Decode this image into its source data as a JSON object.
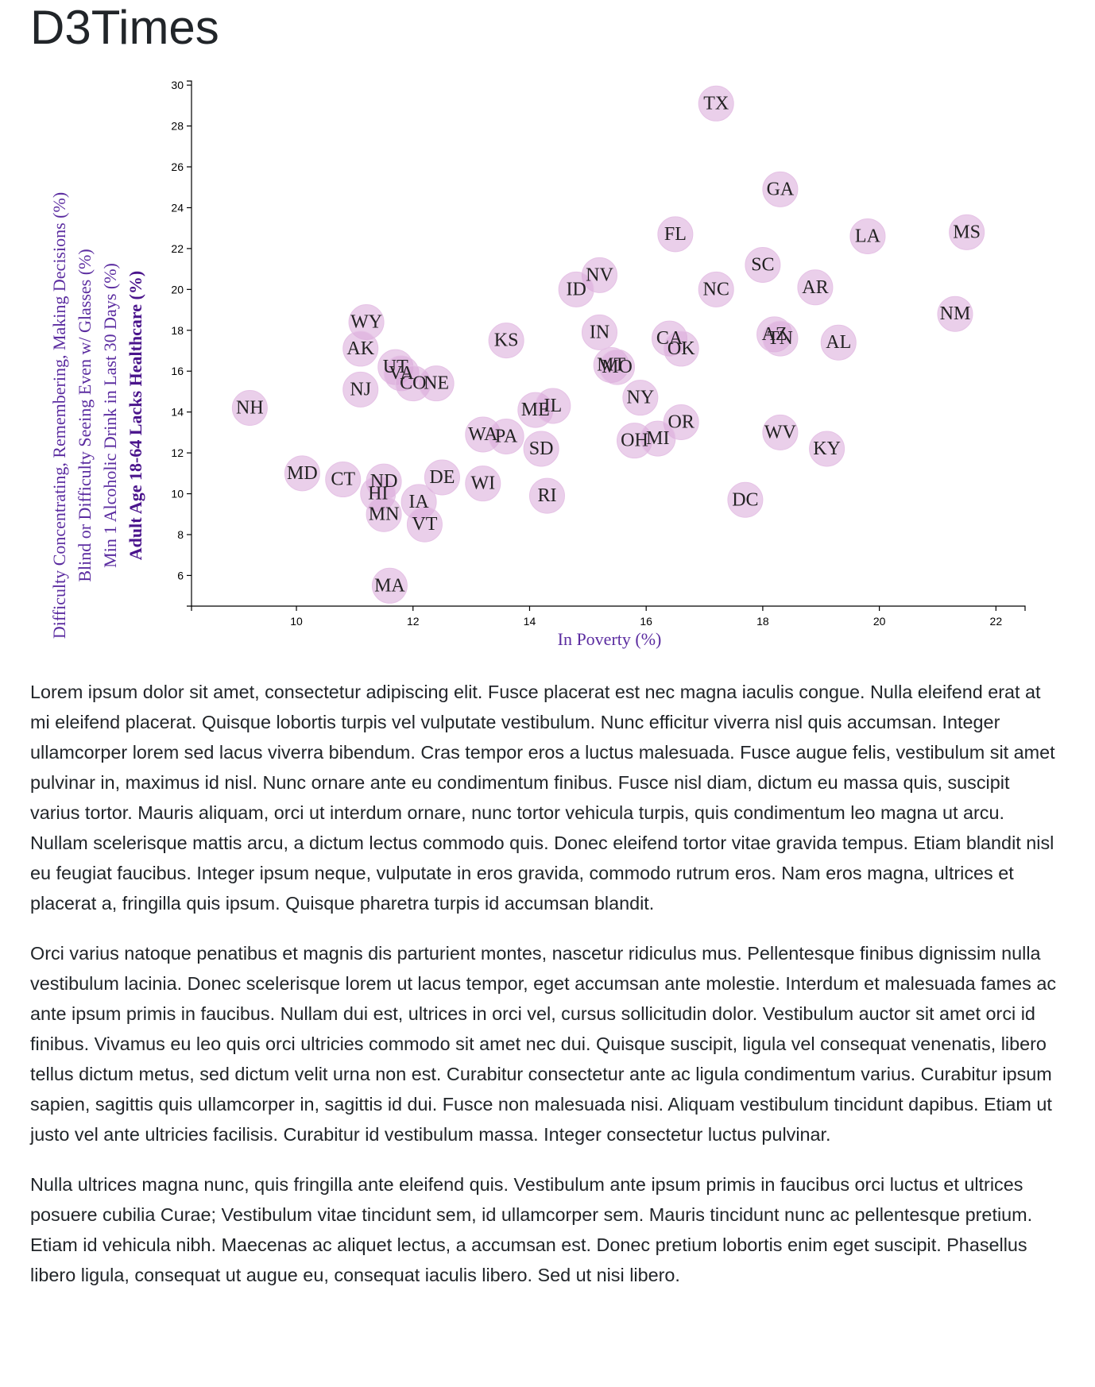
{
  "header": {
    "title": "D3Times"
  },
  "chart_data": {
    "type": "scatter",
    "xlabel": "In Poverty (%)",
    "ylabels": [
      "Difficulty Concentrating, Remembering, Making Decisions (%)",
      "Blind or Difficulty Seeing Even w/ Glasses (%)",
      "Min 1 Alcoholic Drink in Last 30 Days (%)",
      "Adult Age 18-64 Lacks Healthcare (%)"
    ],
    "active_ylabel_index": 3,
    "xlim": [
      8.2,
      22.5
    ],
    "ylim": [
      4.5,
      30.2
    ],
    "x_ticks": [
      10,
      12,
      14,
      16,
      18,
      20,
      22
    ],
    "y_ticks": [
      6,
      8,
      10,
      12,
      14,
      16,
      18,
      20,
      22,
      24,
      26,
      28,
      30
    ],
    "marker_color": "#d8a7d8",
    "label_color": "#5b2ca0",
    "points": [
      {
        "abbr": "TX",
        "x": 17.2,
        "y": 29.1
      },
      {
        "abbr": "GA",
        "x": 18.3,
        "y": 24.9
      },
      {
        "abbr": "FL",
        "x": 16.5,
        "y": 22.7
      },
      {
        "abbr": "LA",
        "x": 19.8,
        "y": 22.6
      },
      {
        "abbr": "MS",
        "x": 21.5,
        "y": 22.8
      },
      {
        "abbr": "SC",
        "x": 18.0,
        "y": 21.2
      },
      {
        "abbr": "NV",
        "x": 15.2,
        "y": 20.7
      },
      {
        "abbr": "ID",
        "x": 14.8,
        "y": 20.0
      },
      {
        "abbr": "NC",
        "x": 17.2,
        "y": 20.0
      },
      {
        "abbr": "AR",
        "x": 18.9,
        "y": 20.1
      },
      {
        "abbr": "NM",
        "x": 21.3,
        "y": 18.8
      },
      {
        "abbr": "WY",
        "x": 11.2,
        "y": 18.4
      },
      {
        "abbr": "IN",
        "x": 15.2,
        "y": 17.9
      },
      {
        "abbr": "KS",
        "x": 13.6,
        "y": 17.5
      },
      {
        "abbr": "CA",
        "x": 16.4,
        "y": 17.6
      },
      {
        "abbr": "OK",
        "x": 16.6,
        "y": 17.1
      },
      {
        "abbr": "AZ",
        "x": 18.2,
        "y": 17.8
      },
      {
        "abbr": "TN",
        "x": 18.3,
        "y": 17.6
      },
      {
        "abbr": "AL",
        "x": 19.3,
        "y": 17.4
      },
      {
        "abbr": "AK",
        "x": 11.1,
        "y": 17.1
      },
      {
        "abbr": "UT",
        "x": 11.7,
        "y": 16.2
      },
      {
        "abbr": "VA",
        "x": 11.8,
        "y": 15.9
      },
      {
        "abbr": "CO",
        "x": 12.0,
        "y": 15.4
      },
      {
        "abbr": "NE",
        "x": 12.4,
        "y": 15.4
      },
      {
        "abbr": "MT",
        "x": 15.4,
        "y": 16.3
      },
      {
        "abbr": "MO",
        "x": 15.5,
        "y": 16.2
      },
      {
        "abbr": "NJ",
        "x": 11.1,
        "y": 15.1
      },
      {
        "abbr": "NY",
        "x": 15.9,
        "y": 14.7
      },
      {
        "abbr": "NH",
        "x": 9.2,
        "y": 14.2
      },
      {
        "abbr": "ME",
        "x": 14.1,
        "y": 14.1
      },
      {
        "abbr": "IL",
        "x": 14.4,
        "y": 14.3
      },
      {
        "abbr": "OR",
        "x": 16.6,
        "y": 13.5
      },
      {
        "abbr": "WV",
        "x": 18.3,
        "y": 13.0
      },
      {
        "abbr": "KY",
        "x": 19.1,
        "y": 12.2
      },
      {
        "abbr": "WA",
        "x": 13.2,
        "y": 12.9
      },
      {
        "abbr": "PA",
        "x": 13.6,
        "y": 12.8
      },
      {
        "abbr": "OH",
        "x": 15.8,
        "y": 12.6
      },
      {
        "abbr": "MI",
        "x": 16.2,
        "y": 12.7
      },
      {
        "abbr": "SD",
        "x": 14.2,
        "y": 12.2
      },
      {
        "abbr": "MD",
        "x": 10.1,
        "y": 11.0
      },
      {
        "abbr": "CT",
        "x": 10.8,
        "y": 10.7
      },
      {
        "abbr": "ND",
        "x": 11.5,
        "y": 10.6
      },
      {
        "abbr": "DE",
        "x": 12.5,
        "y": 10.8
      },
      {
        "abbr": "WI",
        "x": 13.2,
        "y": 10.5
      },
      {
        "abbr": "HI",
        "x": 11.4,
        "y": 10.0
      },
      {
        "abbr": "RI",
        "x": 14.3,
        "y": 9.9
      },
      {
        "abbr": "DC",
        "x": 17.7,
        "y": 9.7
      },
      {
        "abbr": "IA",
        "x": 12.1,
        "y": 9.6
      },
      {
        "abbr": "MN",
        "x": 11.5,
        "y": 9.0
      },
      {
        "abbr": "VT",
        "x": 12.2,
        "y": 8.5
      },
      {
        "abbr": "MA",
        "x": 11.6,
        "y": 5.5
      }
    ]
  },
  "article": {
    "paragraphs": [
      "Lorem ipsum dolor sit amet, consectetur adipiscing elit. Fusce placerat est nec magna iaculis congue. Nulla eleifend erat at mi eleifend placerat. Quisque lobortis turpis vel vulputate vestibulum. Nunc efficitur viverra nisl quis accumsan. Integer ullamcorper lorem sed lacus viverra bibendum. Cras tempor eros a luctus malesuada. Fusce augue felis, vestibulum sit amet pulvinar in, maximus id nisl. Nunc ornare ante eu condimentum finibus. Fusce nisl diam, dictum eu massa quis, suscipit varius tortor. Mauris aliquam, orci ut interdum ornare, nunc tortor vehicula turpis, quis condimentum leo magna ut arcu. Nullam scelerisque mattis arcu, a dictum lectus commodo quis. Donec eleifend tortor vitae gravida tempus. Etiam blandit nisl eu feugiat faucibus. Integer ipsum neque, vulputate in eros gravida, commodo rutrum eros. Nam eros magna, ultrices et placerat a, fringilla quis ipsum. Quisque pharetra turpis id accumsan blandit.",
      "Orci varius natoque penatibus et magnis dis parturient montes, nascetur ridiculus mus. Pellentesque finibus dignissim nulla vestibulum lacinia. Donec scelerisque lorem ut lacus tempor, eget accumsan ante molestie. Interdum et malesuada fames ac ante ipsum primis in faucibus. Nullam dui est, ultrices in orci vel, cursus sollicitudin dolor. Vestibulum auctor sit amet orci id finibus. Vivamus eu leo quis orci ultricies commodo sit amet nec dui. Quisque suscipit, ligula vel consequat venenatis, libero tellus dictum metus, sed dictum velit urna non est. Curabitur consectetur ante ac ligula condimentum varius. Curabitur ipsum sapien, sagittis quis ullamcorper in, sagittis id dui. Fusce non malesuada nisi. Aliquam vestibulum tincidunt dapibus. Etiam ut justo vel ante ultricies facilisis. Curabitur id vestibulum massa. Integer consectetur luctus pulvinar.",
      "Nulla ultrices magna nunc, quis fringilla ante eleifend quis. Vestibulum ante ipsum primis in faucibus orci luctus et ultrices posuere cubilia Curae; Vestibulum vitae tincidunt sem, id ullamcorper sem. Mauris tincidunt nunc ac pellentesque pretium. Etiam id vehicula nibh. Maecenas ac aliquet lectus, a accumsan est. Donec pretium lobortis enim eget suscipit. Phasellus libero ligula, consequat ut augue eu, consequat iaculis libero. Sed ut nisi libero."
    ]
  }
}
